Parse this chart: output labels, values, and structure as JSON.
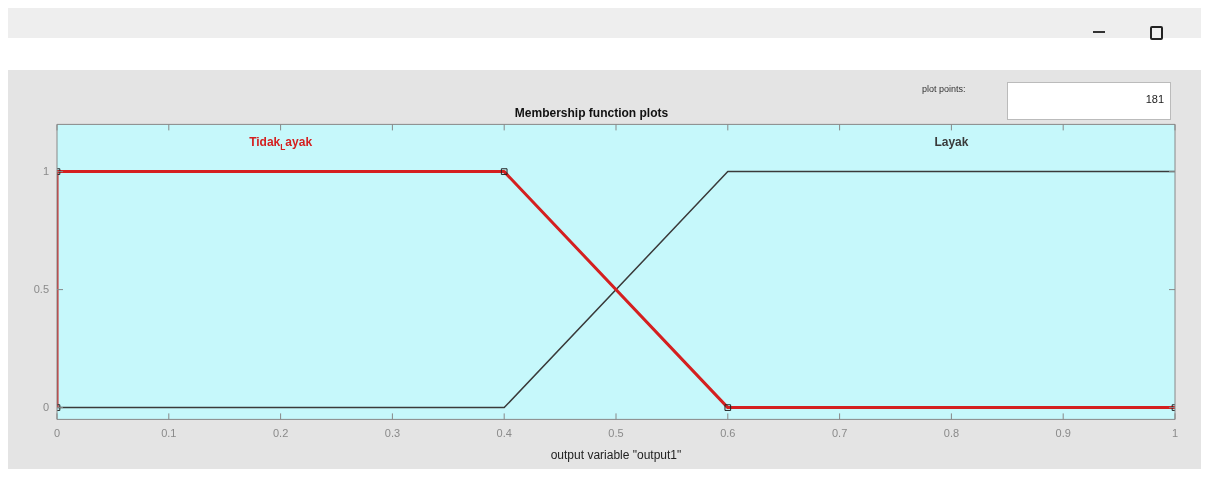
{
  "chart_data": {
    "type": "line",
    "title": "Membership function plots",
    "xlabel": "output variable \"output1\"",
    "annotations": [
      "plot points:",
      "181"
    ],
    "series": [
      {
        "name": "Tidak$_{L}$ayak",
        "color": "#d42020",
        "x": [
          0,
          0,
          0.4,
          0.6,
          1
        ],
        "values": [
          0,
          1,
          1,
          0,
          0
        ],
        "marker": "square"
      },
      {
        "name": "Layak",
        "color": "#3a3a3a",
        "x": [
          0,
          0.4,
          0.6,
          1
        ],
        "values": [
          0,
          0,
          1,
          1
        ],
        "marker": "none"
      }
    ],
    "xlim": [
      0,
      1
    ],
    "ylim": [
      -0.05,
      1.2
    ],
    "xticks": [
      0,
      0.1,
      0.2,
      0.3,
      0.4,
      0.5,
      0.6,
      0.7,
      0.8,
      0.9,
      1
    ],
    "yticks": [
      0,
      0.5,
      1
    ],
    "grid": false,
    "legend": false,
    "line_style": "solid"
  }
}
